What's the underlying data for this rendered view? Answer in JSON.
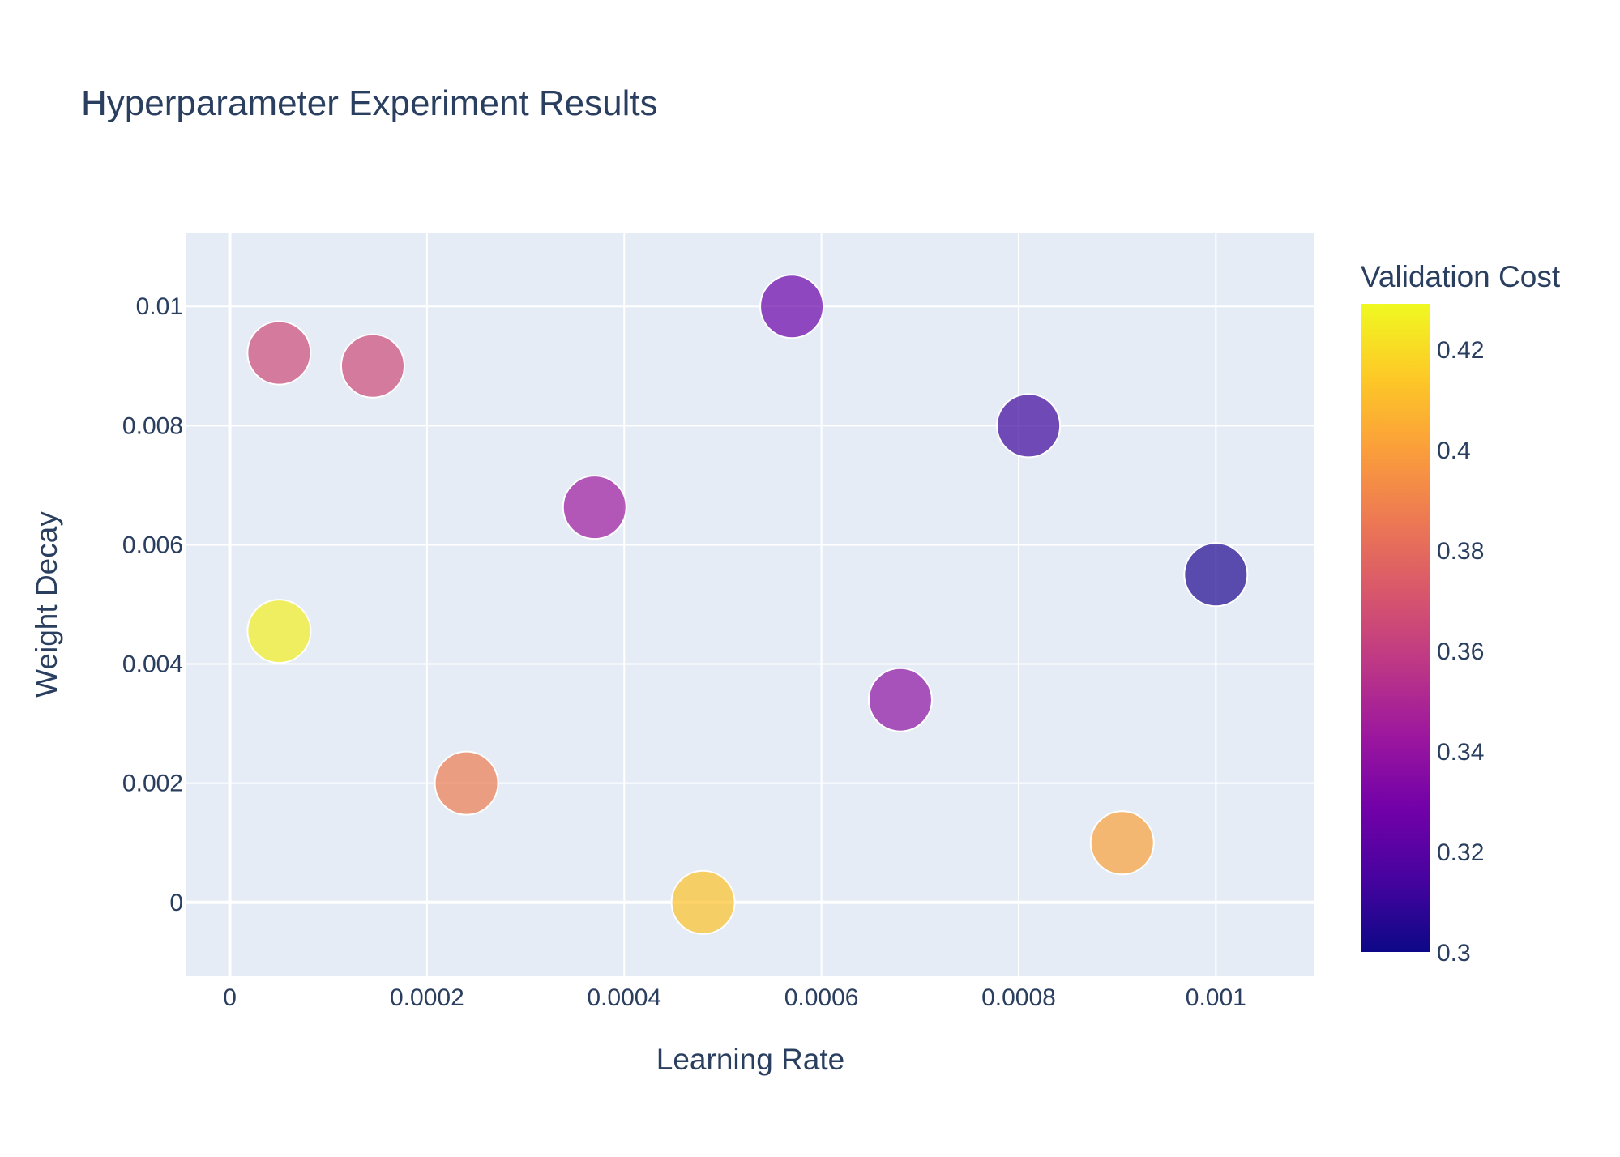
{
  "chart_data": {
    "type": "scatter",
    "title": "Hyperparameter Experiment Results",
    "xlabel": "Learning Rate",
    "ylabel": "Weight Decay",
    "xlim": [
      -4.4e-05,
      0.0011
    ],
    "ylim": [
      -0.00124,
      0.01124
    ],
    "x_ticks": [
      {
        "value": 0,
        "label": "0"
      },
      {
        "value": 0.0002,
        "label": "0.0002"
      },
      {
        "value": 0.0004,
        "label": "0.0004"
      },
      {
        "value": 0.0006,
        "label": "0.0006"
      },
      {
        "value": 0.0008,
        "label": "0.0008"
      },
      {
        "value": 0.001,
        "label": "0.001"
      }
    ],
    "y_ticks": [
      {
        "value": 0,
        "label": "0"
      },
      {
        "value": 0.002,
        "label": "0.002"
      },
      {
        "value": 0.004,
        "label": "0.004"
      },
      {
        "value": 0.006,
        "label": "0.006"
      },
      {
        "value": 0.008,
        "label": "0.008"
      },
      {
        "value": 0.01,
        "label": "0.01"
      }
    ],
    "grid": true,
    "colorbar": {
      "title": "Validation Cost",
      "range": [
        0.3,
        0.429
      ],
      "ticks": [
        {
          "value": 0.3,
          "label": "0.3"
        },
        {
          "value": 0.32,
          "label": "0.32"
        },
        {
          "value": 0.34,
          "label": "0.34"
        },
        {
          "value": 0.36,
          "label": "0.36"
        },
        {
          "value": 0.38,
          "label": "0.38"
        },
        {
          "value": 0.4,
          "label": "0.4"
        },
        {
          "value": 0.42,
          "label": "0.42"
        }
      ],
      "colorscale": [
        "#0d0887",
        "#46039f",
        "#7201a8",
        "#9c179e",
        "#bd3786",
        "#d8576b",
        "#ed7953",
        "#fb9f3a",
        "#fdca26",
        "#f0f921"
      ]
    },
    "points": [
      {
        "x": 5e-05,
        "y": 0.00922,
        "cost": 0.366
      },
      {
        "x": 0.000145,
        "y": 0.009,
        "cost": 0.366
      },
      {
        "x": 0.00057,
        "y": 0.01,
        "cost": 0.326
      },
      {
        "x": 0.00037,
        "y": 0.00663,
        "cost": 0.343
      },
      {
        "x": 0.00081,
        "y": 0.008,
        "cost": 0.312
      },
      {
        "x": 0.001,
        "y": 0.0055,
        "cost": 0.304
      },
      {
        "x": 5e-05,
        "y": 0.00455,
        "cost": 0.426
      },
      {
        "x": 0.00068,
        "y": 0.0034,
        "cost": 0.338
      },
      {
        "x": 0.00024,
        "y": 0.002,
        "cost": 0.387
      },
      {
        "x": 0.00048,
        "y": 0.0,
        "cost": 0.412
      },
      {
        "x": 0.000905,
        "y": 0.001,
        "cost": 0.401
      }
    ]
  }
}
